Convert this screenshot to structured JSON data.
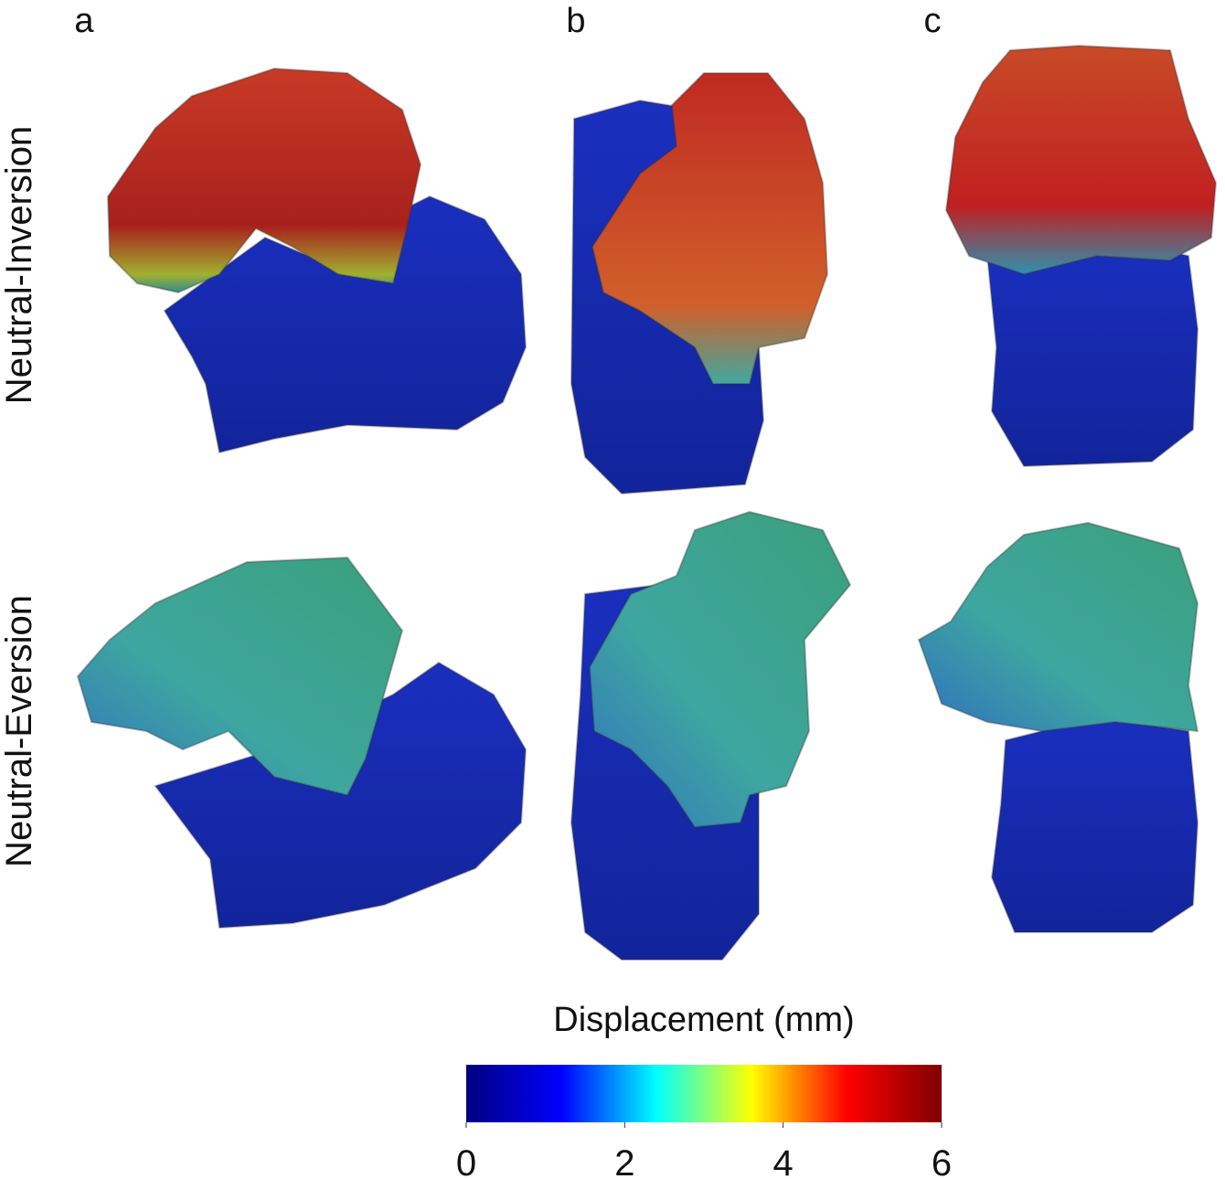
{
  "panels": {
    "columns": [
      "a",
      "b",
      "c"
    ],
    "rows": [
      "Neutral-Inversion",
      "Neutral-Eversion"
    ]
  },
  "colorbar": {
    "title": "Displacement (mm)",
    "lim": [
      0,
      6
    ],
    "ticks": [
      0,
      2,
      4,
      6
    ],
    "colors": [
      "#00007f",
      "#0000ff",
      "#00ffff",
      "#ffff00",
      "#ff0000",
      "#7f0000"
    ]
  }
}
